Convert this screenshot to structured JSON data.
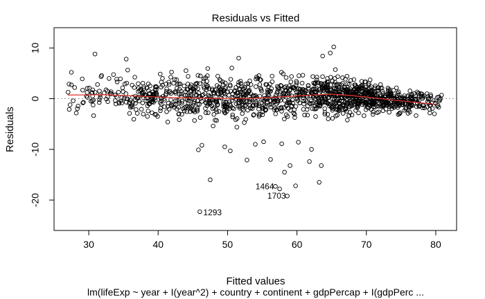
{
  "chart_data": {
    "type": "scatter",
    "title": "Residuals vs Fitted",
    "xlabel": "Fitted values",
    "ylabel": "Residuals",
    "subtitle": "lm(lifeExp ~ year + I(year^2) + country + continent + gdpPercap + I(gdpPerc ...",
    "xlim": [
      25,
      83
    ],
    "ylim": [
      -26,
      14
    ],
    "xticks": [
      30,
      40,
      50,
      60,
      70,
      80
    ],
    "yticks": [
      -20,
      -10,
      0,
      10
    ],
    "grid": false,
    "reference_line_y": 0,
    "smooth_line": {
      "x": [
        27,
        32,
        37,
        42,
        47,
        52,
        57,
        62,
        65,
        68,
        72,
        76,
        80
      ],
      "y": [
        0.7,
        0.8,
        0.5,
        0.2,
        0.1,
        0.0,
        0.3,
        0.7,
        0.9,
        0.6,
        0.0,
        -0.6,
        -1.1
      ]
    },
    "labeled_points": [
      {
        "label": "1464",
        "x": 56.9,
        "y": -17.3
      },
      {
        "label": "1703",
        "x": 58.6,
        "y": -19.2
      },
      {
        "label": "1293",
        "x": 46.0,
        "y": -22.3
      }
    ],
    "outliers": [
      {
        "x": 47.5,
        "y": -16.0
      },
      {
        "x": 57.5,
        "y": -17.8
      },
      {
        "x": 59.8,
        "y": -17.2
      },
      {
        "x": 58.2,
        "y": -14.5
      },
      {
        "x": 59.0,
        "y": -13.2
      },
      {
        "x": 61.8,
        "y": -12.4
      },
      {
        "x": 63.5,
        "y": -13.2
      },
      {
        "x": 63.2,
        "y": -16.5
      },
      {
        "x": 56.2,
        "y": -12.0
      },
      {
        "x": 52.8,
        "y": -12.1
      },
      {
        "x": 46.3,
        "y": -9.2
      },
      {
        "x": 45.8,
        "y": -10.1
      },
      {
        "x": 49.6,
        "y": -9.5
      },
      {
        "x": 50.4,
        "y": -10.3
      },
      {
        "x": 54.0,
        "y": -9.0
      },
      {
        "x": 55.2,
        "y": -8.5
      },
      {
        "x": 57.8,
        "y": -8.9
      },
      {
        "x": 60.2,
        "y": -8.6
      },
      {
        "x": 62.1,
        "y": -10.0
      },
      {
        "x": 30.9,
        "y": 8.8
      },
      {
        "x": 35.4,
        "y": 7.8
      },
      {
        "x": 65.3,
        "y": 10.2
      },
      {
        "x": 64.8,
        "y": 9.0
      },
      {
        "x": 63.7,
        "y": 8.4
      },
      {
        "x": 51.6,
        "y": 8.0
      },
      {
        "x": 27.5,
        "y": 5.2
      }
    ]
  }
}
